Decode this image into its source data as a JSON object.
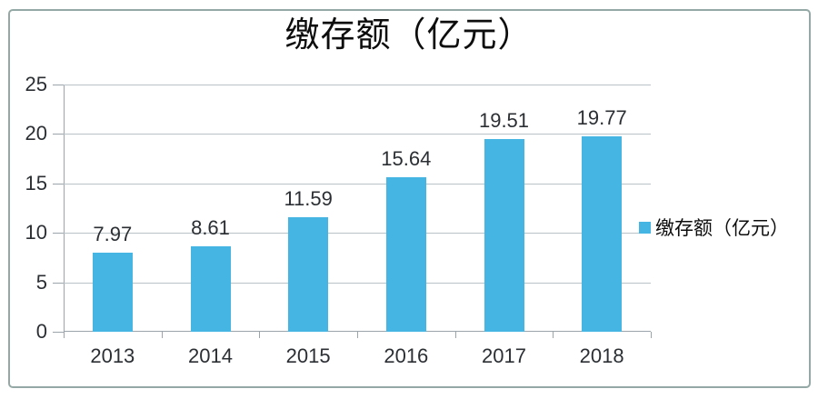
{
  "chart_data": {
    "type": "bar",
    "title": "缴存额（亿元）",
    "categories": [
      "2013",
      "2014",
      "2015",
      "2016",
      "2017",
      "2018"
    ],
    "series": [
      {
        "name": "缴存额（亿元）",
        "color": "#45b6e3",
        "values": [
          7.97,
          8.61,
          11.59,
          15.64,
          19.51,
          19.77
        ],
        "value_labels": [
          "7.97",
          "8.61",
          "11.59",
          "15.64",
          "19.51",
          "19.77"
        ]
      }
    ],
    "xlabel": "",
    "ylabel": "",
    "ylim": [
      0,
      25
    ],
    "yticks": [
      0,
      5,
      10,
      15,
      20,
      25
    ],
    "grid": true,
    "legend_position": "right",
    "colors": {
      "bar": "#45b6e3",
      "gridline": "#b9c2c6",
      "axis": "#9aa4aa",
      "text": "#2b2f33",
      "title_text": "#0d0d0d",
      "frame_border": "#94a9a5",
      "background": "#ffffff"
    }
  }
}
